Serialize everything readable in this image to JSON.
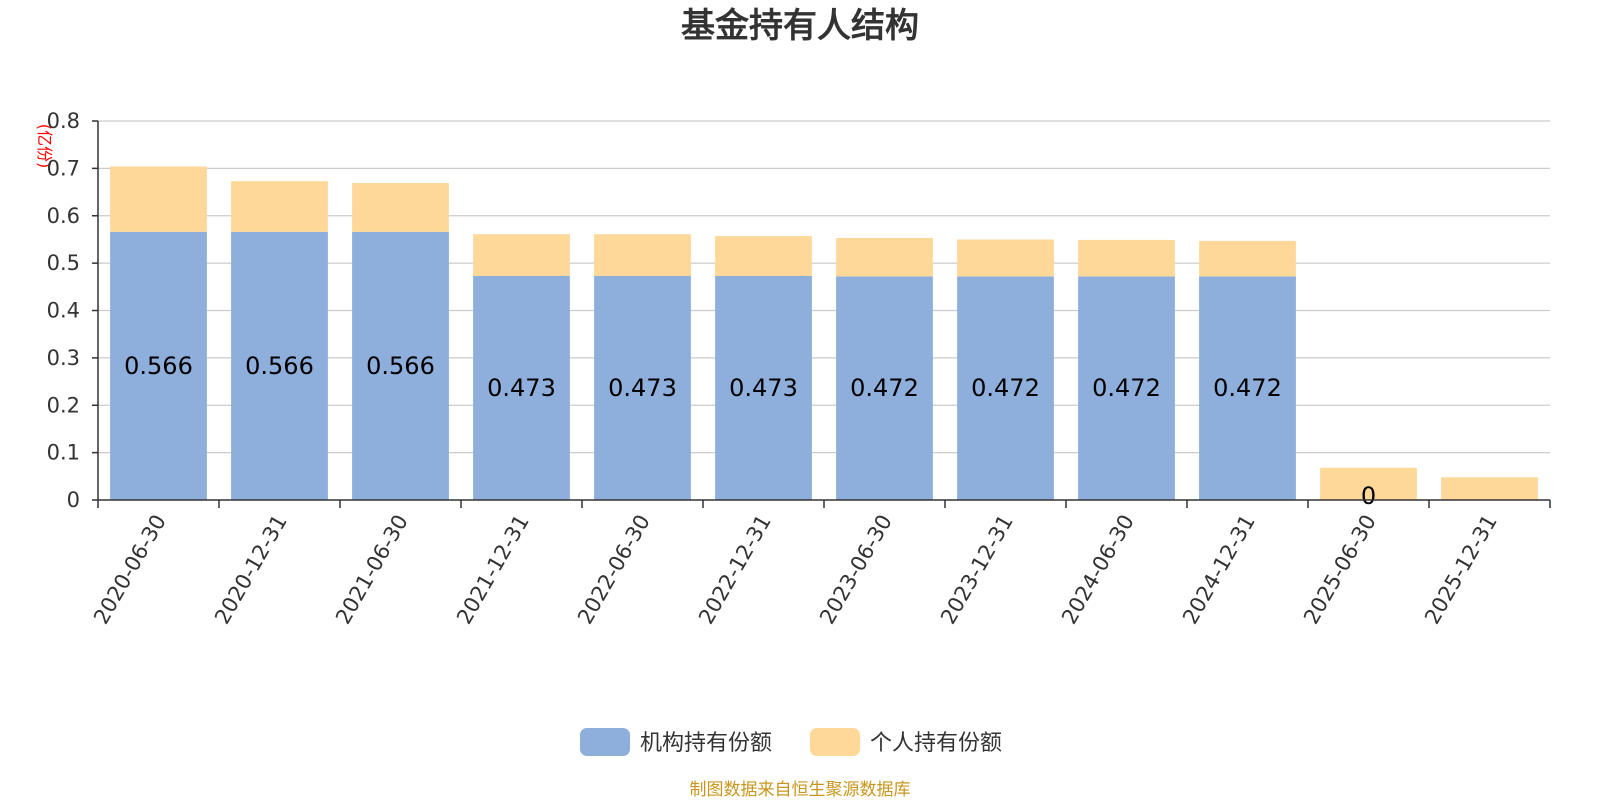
{
  "chart_data": {
    "type": "bar",
    "stacked": true,
    "title": "基金持有人结构",
    "ylabel": "(亿份)",
    "xlabel": "",
    "ylim": [
      0,
      0.8
    ],
    "yticks": [
      "0",
      "0.1",
      "0.2",
      "0.3",
      "0.4",
      "0.5",
      "0.6",
      "0.7",
      "0.8"
    ],
    "grid": true,
    "legend_position": "bottom-center",
    "categories": [
      "2020-06-30",
      "2020-12-31",
      "2021-06-30",
      "2021-12-31",
      "2022-06-30",
      "2022-12-31",
      "2023-06-30",
      "2023-12-31",
      "2024-06-30",
      "2024-12-31",
      "2025-06-30",
      "2025-12-31"
    ],
    "series": [
      {
        "name": "机构持有份额",
        "color": "#8eaedb",
        "values": [
          0.566,
          0.566,
          0.566,
          0.473,
          0.473,
          0.473,
          0.472,
          0.472,
          0.472,
          0.472,
          0,
          0
        ],
        "labels": [
          "0.566",
          "0.566",
          "0.566",
          "0.473",
          "0.473",
          "0.473",
          "0.472",
          "0.472",
          "0.472",
          "0.472",
          "0",
          ""
        ]
      },
      {
        "name": "个人持有份额",
        "color": "#fed899",
        "values": [
          0.138,
          0.107,
          0.103,
          0.088,
          0.088,
          0.084,
          0.081,
          0.078,
          0.077,
          0.075,
          0.068,
          0.048
        ]
      }
    ],
    "source": "制图数据来自恒生聚源数据库"
  },
  "colors": {
    "title": "#333333",
    "axis_text": "#333333",
    "unit": "#ff0000",
    "grid": "#cccccc",
    "source": "#c8961e"
  }
}
